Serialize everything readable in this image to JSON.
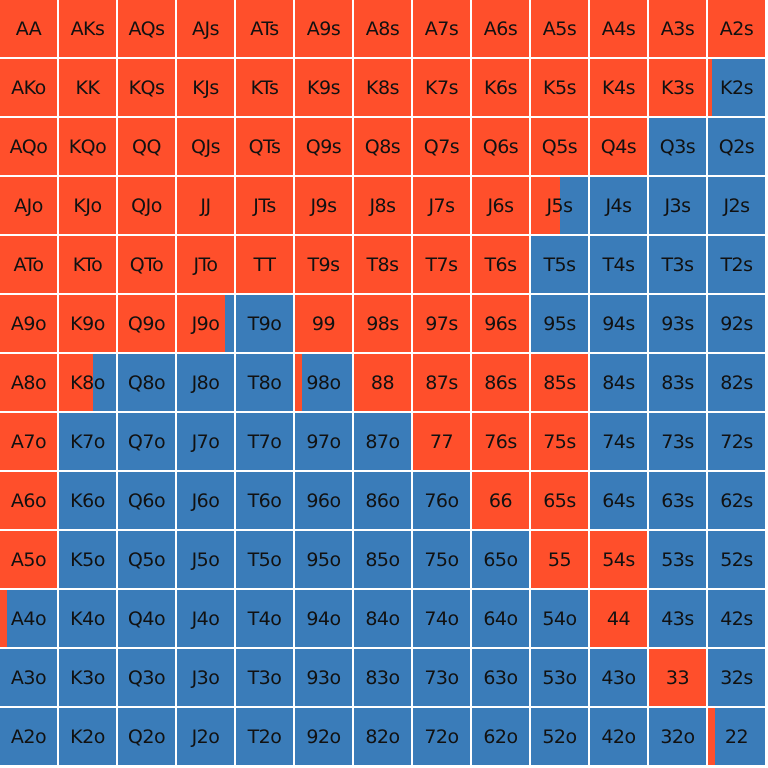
{
  "colors": {
    "raise": "#ff4f2b",
    "fold": "#3a7cb9",
    "text": "#111111",
    "gridline": "#ffffff"
  },
  "legend_note": "cell fill fraction = share of raise (orange) vs fold (blue)",
  "grid": {
    "rows": [
      {
        "cells": [
          {
            "hand": "AA",
            "raise": 1
          },
          {
            "hand": "AKs",
            "raise": 1
          },
          {
            "hand": "AQs",
            "raise": 1
          },
          {
            "hand": "AJs",
            "raise": 1
          },
          {
            "hand": "ATs",
            "raise": 1
          },
          {
            "hand": "A9s",
            "raise": 1
          },
          {
            "hand": "A8s",
            "raise": 1
          },
          {
            "hand": "A7s",
            "raise": 1
          },
          {
            "hand": "A6s",
            "raise": 1
          },
          {
            "hand": "A5s",
            "raise": 1
          },
          {
            "hand": "A4s",
            "raise": 1
          },
          {
            "hand": "A3s",
            "raise": 1
          },
          {
            "hand": "A2s",
            "raise": 1
          }
        ]
      },
      {
        "cells": [
          {
            "hand": "AKo",
            "raise": 1
          },
          {
            "hand": "KK",
            "raise": 1
          },
          {
            "hand": "KQs",
            "raise": 1
          },
          {
            "hand": "KJs",
            "raise": 1
          },
          {
            "hand": "KTs",
            "raise": 1
          },
          {
            "hand": "K9s",
            "raise": 1
          },
          {
            "hand": "K8s",
            "raise": 1
          },
          {
            "hand": "K7s",
            "raise": 1
          },
          {
            "hand": "K6s",
            "raise": 1
          },
          {
            "hand": "K5s",
            "raise": 1
          },
          {
            "hand": "K4s",
            "raise": 1
          },
          {
            "hand": "K3s",
            "raise": 1
          },
          {
            "hand": "K2s",
            "raise": 0.07
          }
        ]
      },
      {
        "cells": [
          {
            "hand": "AQo",
            "raise": 1
          },
          {
            "hand": "KQo",
            "raise": 1
          },
          {
            "hand": "QQ",
            "raise": 1
          },
          {
            "hand": "QJs",
            "raise": 1
          },
          {
            "hand": "QTs",
            "raise": 1
          },
          {
            "hand": "Q9s",
            "raise": 1
          },
          {
            "hand": "Q8s",
            "raise": 1
          },
          {
            "hand": "Q7s",
            "raise": 1
          },
          {
            "hand": "Q6s",
            "raise": 1
          },
          {
            "hand": "Q5s",
            "raise": 1
          },
          {
            "hand": "Q4s",
            "raise": 1
          },
          {
            "hand": "Q3s",
            "raise": 0
          },
          {
            "hand": "Q2s",
            "raise": 0
          }
        ]
      },
      {
        "cells": [
          {
            "hand": "AJo",
            "raise": 1
          },
          {
            "hand": "KJo",
            "raise": 1
          },
          {
            "hand": "QJo",
            "raise": 1
          },
          {
            "hand": "JJ",
            "raise": 1
          },
          {
            "hand": "JTs",
            "raise": 1
          },
          {
            "hand": "J9s",
            "raise": 1
          },
          {
            "hand": "J8s",
            "raise": 1
          },
          {
            "hand": "J7s",
            "raise": 1
          },
          {
            "hand": "J6s",
            "raise": 1
          },
          {
            "hand": "J5s",
            "raise": 0.5
          },
          {
            "hand": "J4s",
            "raise": 0
          },
          {
            "hand": "J3s",
            "raise": 0
          },
          {
            "hand": "J2s",
            "raise": 0
          }
        ]
      },
      {
        "cells": [
          {
            "hand": "ATo",
            "raise": 1
          },
          {
            "hand": "KTo",
            "raise": 1
          },
          {
            "hand": "QTo",
            "raise": 1
          },
          {
            "hand": "JTo",
            "raise": 1
          },
          {
            "hand": "TT",
            "raise": 1
          },
          {
            "hand": "T9s",
            "raise": 1
          },
          {
            "hand": "T8s",
            "raise": 1
          },
          {
            "hand": "T7s",
            "raise": 1
          },
          {
            "hand": "T6s",
            "raise": 1
          },
          {
            "hand": "T5s",
            "raise": 0
          },
          {
            "hand": "T4s",
            "raise": 0
          },
          {
            "hand": "T3s",
            "raise": 0
          },
          {
            "hand": "T2s",
            "raise": 0
          }
        ]
      },
      {
        "cells": [
          {
            "hand": "A9o",
            "raise": 1
          },
          {
            "hand": "K9o",
            "raise": 1
          },
          {
            "hand": "Q9o",
            "raise": 1
          },
          {
            "hand": "J9o",
            "raise": 0.84
          },
          {
            "hand": "T9o",
            "raise": 0
          },
          {
            "hand": "99",
            "raise": 1
          },
          {
            "hand": "98s",
            "raise": 1
          },
          {
            "hand": "97s",
            "raise": 1
          },
          {
            "hand": "96s",
            "raise": 1
          },
          {
            "hand": "95s",
            "raise": 0
          },
          {
            "hand": "94s",
            "raise": 0
          },
          {
            "hand": "93s",
            "raise": 0
          },
          {
            "hand": "92s",
            "raise": 0
          }
        ]
      },
      {
        "cells": [
          {
            "hand": "A8o",
            "raise": 1
          },
          {
            "hand": "K8o",
            "raise": 0.6
          },
          {
            "hand": "Q8o",
            "raise": 0
          },
          {
            "hand": "J8o",
            "raise": 0
          },
          {
            "hand": "T8o",
            "raise": 0
          },
          {
            "hand": "98o",
            "raise": 0.12
          },
          {
            "hand": "88",
            "raise": 1
          },
          {
            "hand": "87s",
            "raise": 1
          },
          {
            "hand": "86s",
            "raise": 1
          },
          {
            "hand": "85s",
            "raise": 1
          },
          {
            "hand": "84s",
            "raise": 0
          },
          {
            "hand": "83s",
            "raise": 0
          },
          {
            "hand": "82s",
            "raise": 0
          }
        ]
      },
      {
        "cells": [
          {
            "hand": "A7o",
            "raise": 1
          },
          {
            "hand": "K7o",
            "raise": 0
          },
          {
            "hand": "Q7o",
            "raise": 0
          },
          {
            "hand": "J7o",
            "raise": 0
          },
          {
            "hand": "T7o",
            "raise": 0
          },
          {
            "hand": "97o",
            "raise": 0
          },
          {
            "hand": "87o",
            "raise": 0
          },
          {
            "hand": "77",
            "raise": 1
          },
          {
            "hand": "76s",
            "raise": 1
          },
          {
            "hand": "75s",
            "raise": 1
          },
          {
            "hand": "74s",
            "raise": 0
          },
          {
            "hand": "73s",
            "raise": 0
          },
          {
            "hand": "72s",
            "raise": 0
          }
        ]
      },
      {
        "cells": [
          {
            "hand": "A6o",
            "raise": 1
          },
          {
            "hand": "K6o",
            "raise": 0
          },
          {
            "hand": "Q6o",
            "raise": 0
          },
          {
            "hand": "J6o",
            "raise": 0
          },
          {
            "hand": "T6o",
            "raise": 0
          },
          {
            "hand": "96o",
            "raise": 0
          },
          {
            "hand": "86o",
            "raise": 0
          },
          {
            "hand": "76o",
            "raise": 0
          },
          {
            "hand": "66",
            "raise": 1
          },
          {
            "hand": "65s",
            "raise": 1
          },
          {
            "hand": "64s",
            "raise": 0
          },
          {
            "hand": "63s",
            "raise": 0
          },
          {
            "hand": "62s",
            "raise": 0
          }
        ]
      },
      {
        "cells": [
          {
            "hand": "A5o",
            "raise": 1
          },
          {
            "hand": "K5o",
            "raise": 0
          },
          {
            "hand": "Q5o",
            "raise": 0
          },
          {
            "hand": "J5o",
            "raise": 0
          },
          {
            "hand": "T5o",
            "raise": 0
          },
          {
            "hand": "95o",
            "raise": 0
          },
          {
            "hand": "85o",
            "raise": 0
          },
          {
            "hand": "75o",
            "raise": 0
          },
          {
            "hand": "65o",
            "raise": 0
          },
          {
            "hand": "55",
            "raise": 1
          },
          {
            "hand": "54s",
            "raise": 1
          },
          {
            "hand": "53s",
            "raise": 0
          },
          {
            "hand": "52s",
            "raise": 0
          }
        ]
      },
      {
        "cells": [
          {
            "hand": "A4o",
            "raise": 0.12
          },
          {
            "hand": "K4o",
            "raise": 0
          },
          {
            "hand": "Q4o",
            "raise": 0
          },
          {
            "hand": "J4o",
            "raise": 0
          },
          {
            "hand": "T4o",
            "raise": 0
          },
          {
            "hand": "94o",
            "raise": 0
          },
          {
            "hand": "84o",
            "raise": 0
          },
          {
            "hand": "74o",
            "raise": 0
          },
          {
            "hand": "64o",
            "raise": 0
          },
          {
            "hand": "54o",
            "raise": 0
          },
          {
            "hand": "44",
            "raise": 1
          },
          {
            "hand": "43s",
            "raise": 0
          },
          {
            "hand": "42s",
            "raise": 0
          }
        ]
      },
      {
        "cells": [
          {
            "hand": "A3o",
            "raise": 0
          },
          {
            "hand": "K3o",
            "raise": 0
          },
          {
            "hand": "Q3o",
            "raise": 0
          },
          {
            "hand": "J3o",
            "raise": 0
          },
          {
            "hand": "T3o",
            "raise": 0
          },
          {
            "hand": "93o",
            "raise": 0
          },
          {
            "hand": "83o",
            "raise": 0
          },
          {
            "hand": "73o",
            "raise": 0
          },
          {
            "hand": "63o",
            "raise": 0
          },
          {
            "hand": "53o",
            "raise": 0
          },
          {
            "hand": "43o",
            "raise": 0
          },
          {
            "hand": "33",
            "raise": 1
          },
          {
            "hand": "32s",
            "raise": 0
          }
        ]
      },
      {
        "cells": [
          {
            "hand": "A2o",
            "raise": 0
          },
          {
            "hand": "K2o",
            "raise": 0
          },
          {
            "hand": "Q2o",
            "raise": 0
          },
          {
            "hand": "J2o",
            "raise": 0
          },
          {
            "hand": "T2o",
            "raise": 0
          },
          {
            "hand": "92o",
            "raise": 0
          },
          {
            "hand": "82o",
            "raise": 0
          },
          {
            "hand": "72o",
            "raise": 0
          },
          {
            "hand": "62o",
            "raise": 0
          },
          {
            "hand": "52o",
            "raise": 0
          },
          {
            "hand": "42o",
            "raise": 0
          },
          {
            "hand": "32o",
            "raise": 0
          },
          {
            "hand": "22",
            "raise": 0.12
          }
        ]
      }
    ]
  }
}
